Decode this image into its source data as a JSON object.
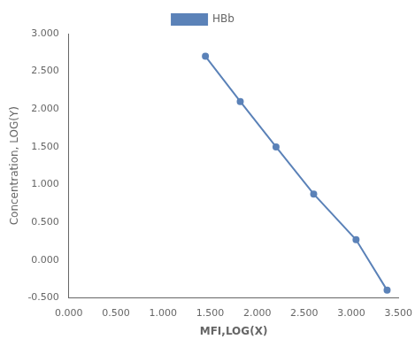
{
  "chart_data": {
    "type": "line",
    "xlabel": "MFI,LOG(X)",
    "ylabel": "Concentration, LOG(Y)",
    "x": [
      1.45,
      1.82,
      2.2,
      2.6,
      3.05,
      3.38
    ],
    "series": [
      {
        "name": "HBb",
        "color": "#5b82b8",
        "marker": "circle",
        "line_style": "solid",
        "values": [
          2.7,
          2.1,
          1.5,
          0.875,
          0.27,
          -0.4
        ]
      }
    ],
    "xlim": [
      0.0,
      3.5
    ],
    "ylim": [
      -0.5,
      3.0
    ],
    "xticks": [
      {
        "value": 0,
        "label": "0.000"
      },
      {
        "value": 0.5,
        "label": "0.500"
      },
      {
        "value": 1,
        "label": "1.000"
      },
      {
        "value": 1.5,
        "label": "1.500"
      },
      {
        "value": 2,
        "label": "2.000"
      },
      {
        "value": 2.5,
        "label": "2.500"
      },
      {
        "value": 3,
        "label": "3.000"
      },
      {
        "value": 3.5,
        "label": "3.500"
      }
    ],
    "yticks": [
      {
        "value": -0.5,
        "label": "-0.500"
      },
      {
        "value": 0,
        "label": "0.000"
      },
      {
        "value": 0.5,
        "label": "0.500"
      },
      {
        "value": 1,
        "label": "1.000"
      },
      {
        "value": 1.5,
        "label": "1.500"
      },
      {
        "value": 2,
        "label": "2.000"
      },
      {
        "value": 2.5,
        "label": "2.500"
      },
      {
        "value": 3,
        "label": "3.000"
      }
    ],
    "grid": false,
    "legend": "top"
  }
}
